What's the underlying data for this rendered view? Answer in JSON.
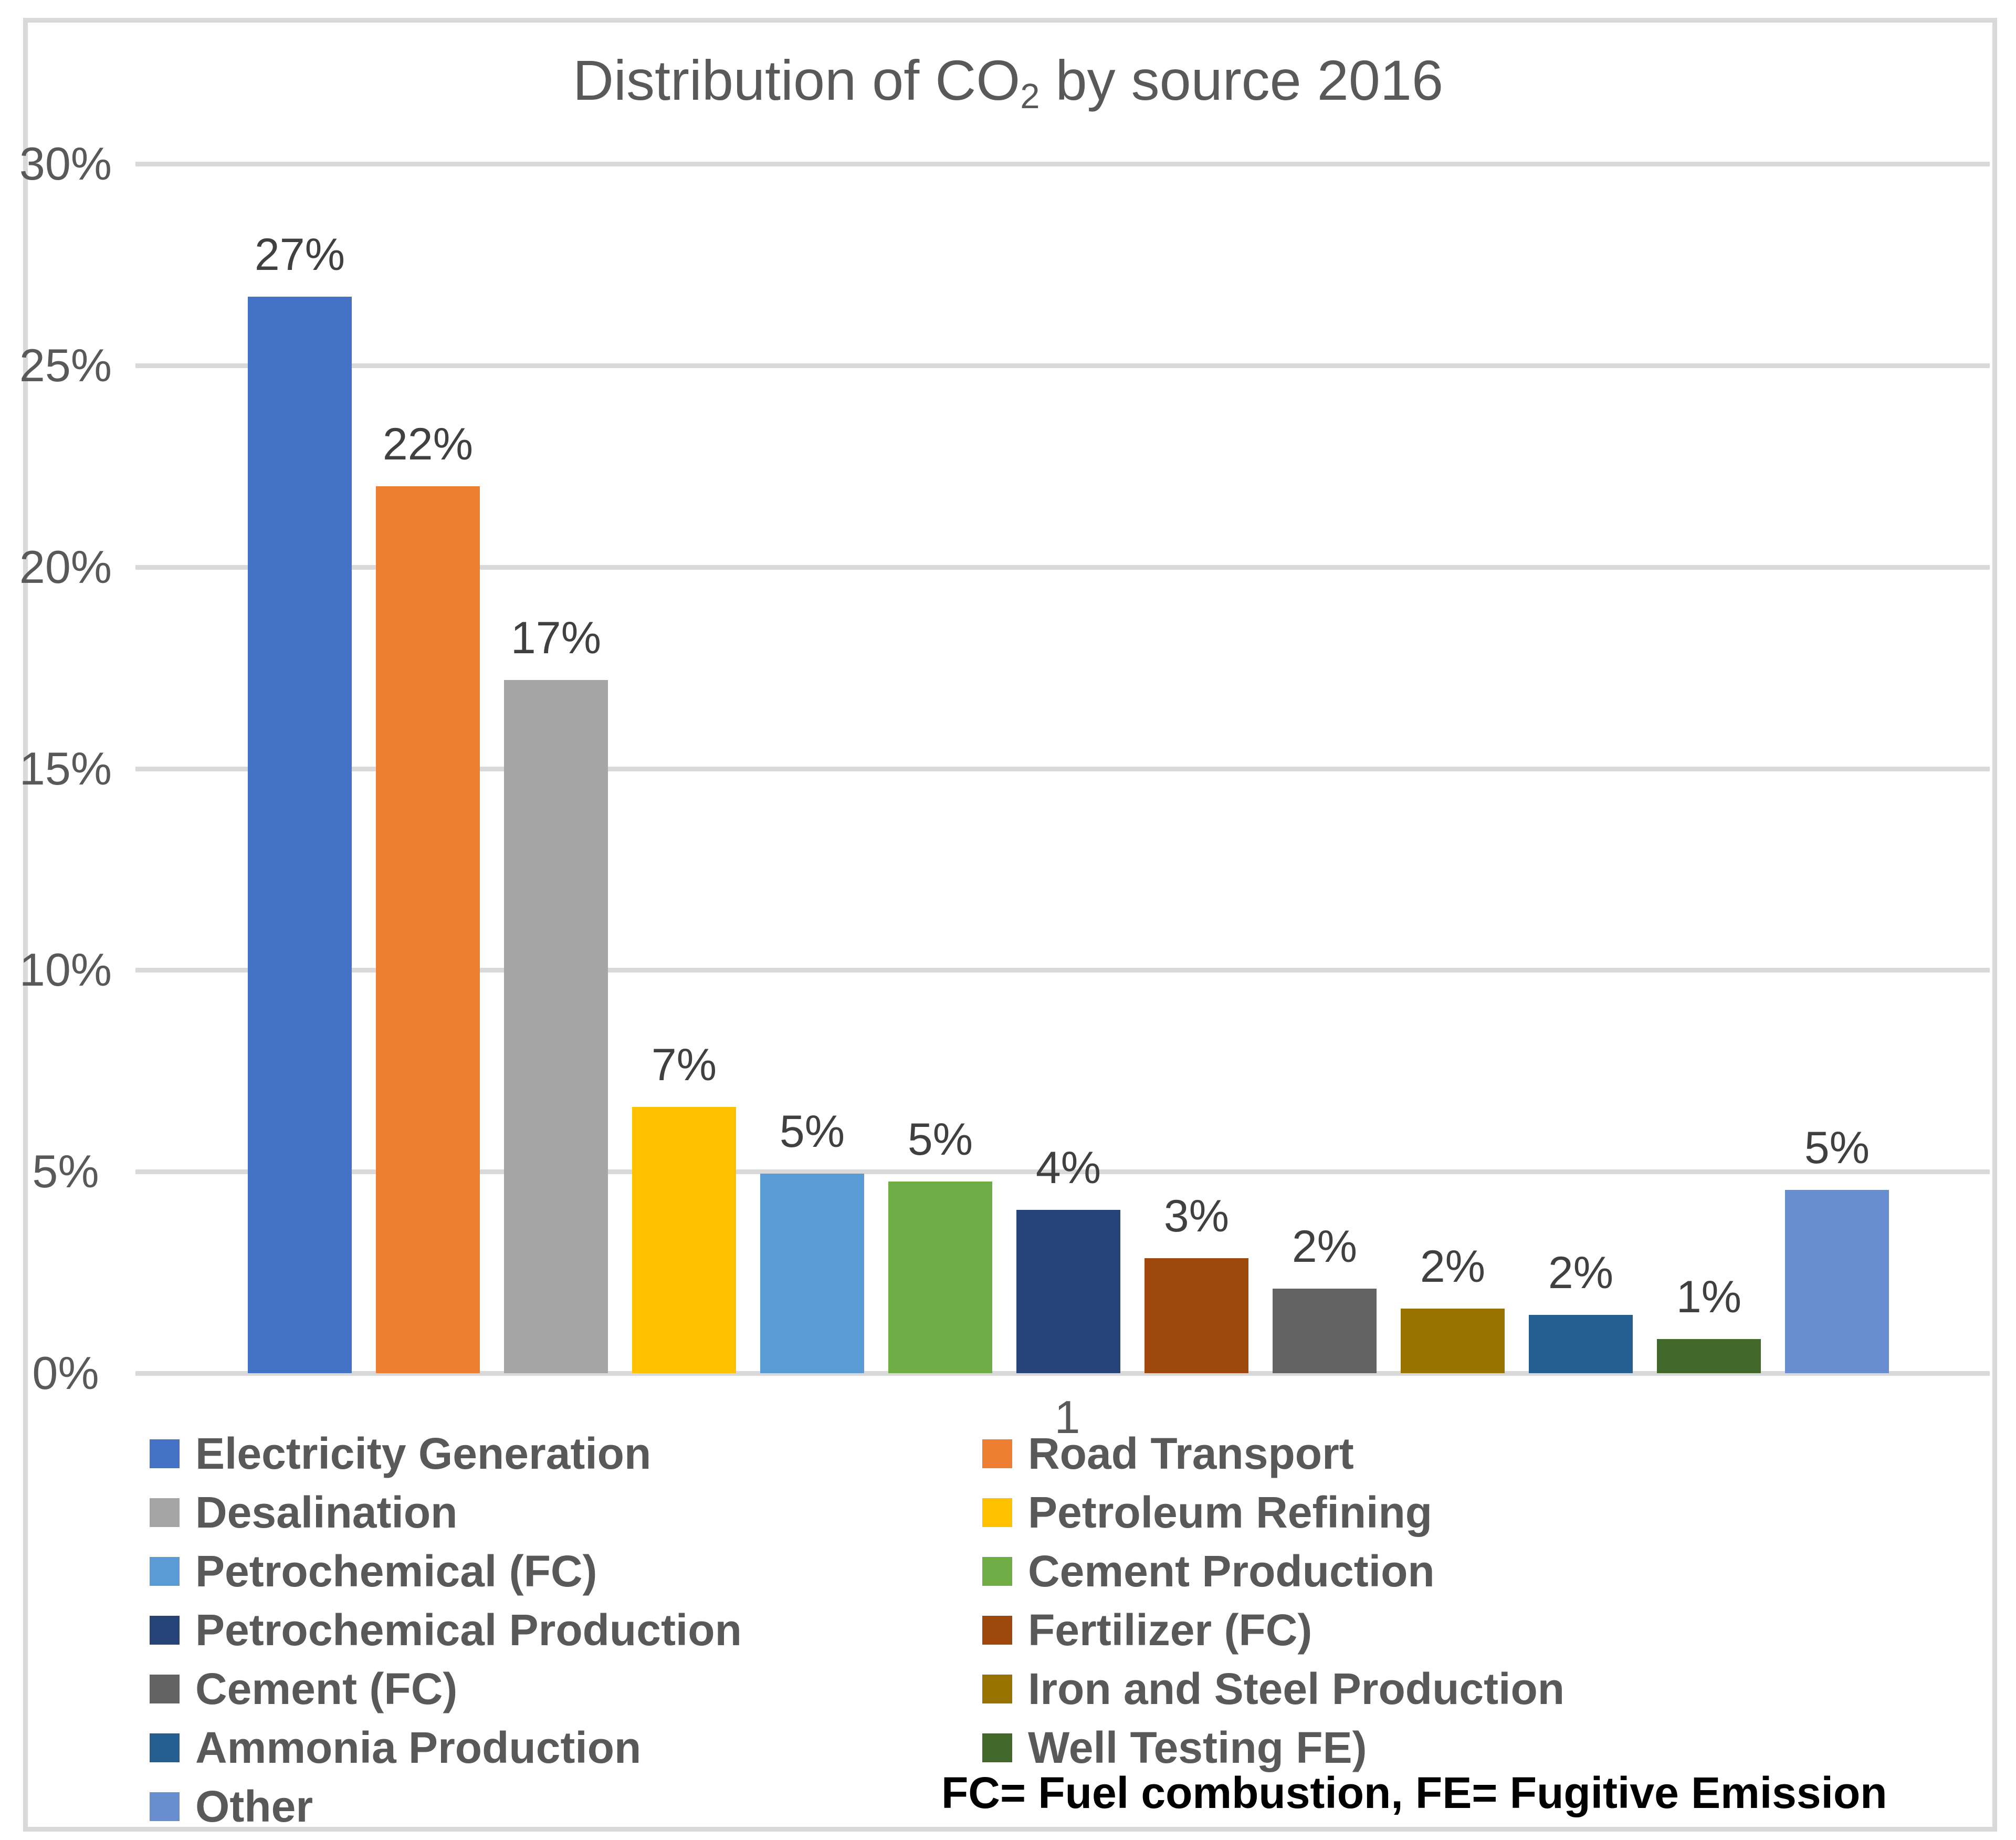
{
  "chart_data": {
    "type": "bar",
    "title": "Distribution of CO2 by source 2016",
    "title_parts": {
      "pre": "Distribution of CO",
      "sub": "2",
      "post": " by source 2016"
    },
    "x_category_label": "1",
    "ylim": [
      0,
      30
    ],
    "y_ticks": [
      "0%",
      "5%",
      "10%",
      "15%",
      "20%",
      "25%",
      "30%"
    ],
    "grid": true,
    "legend_position": "bottom-two-columns",
    "note": "FC= Fuel combustion, FE= Fugitive Emission",
    "series": [
      {
        "name": "Electricity Generation",
        "value_label": "27%",
        "value_pct": 27,
        "bar_height_pct_est": 26.7,
        "color": "#4472C4"
      },
      {
        "name": "Road Transport",
        "value_label": "22%",
        "value_pct": 22,
        "bar_height_pct_est": 22.0,
        "color": "#ED7D31"
      },
      {
        "name": "Desalination",
        "value_label": "17%",
        "value_pct": 17,
        "bar_height_pct_est": 17.2,
        "color": "#A5A5A5"
      },
      {
        "name": "Petroleum Refining",
        "value_label": "7%",
        "value_pct": 7,
        "bar_height_pct_est": 6.6,
        "color": "#FFC000"
      },
      {
        "name": "Petrochemical (FC)",
        "value_label": "5%",
        "value_pct": 5,
        "bar_height_pct_est": 4.95,
        "color": "#5B9BD5"
      },
      {
        "name": "Cement Production",
        "value_label": "5%",
        "value_pct": 5,
        "bar_height_pct_est": 4.75,
        "color": "#70AD47"
      },
      {
        "name": "Petrochemical Production",
        "value_label": "4%",
        "value_pct": 4,
        "bar_height_pct_est": 4.05,
        "color": "#264478"
      },
      {
        "name": "Fertilizer (FC)",
        "value_label": "3%",
        "value_pct": 3,
        "bar_height_pct_est": 2.85,
        "color": "#9E480E"
      },
      {
        "name": "Cement (FC)",
        "value_label": "2%",
        "value_pct": 2,
        "bar_height_pct_est": 2.1,
        "color": "#636363"
      },
      {
        "name": "Iron and Steel Production",
        "value_label": "2%",
        "value_pct": 2,
        "bar_height_pct_est": 1.6,
        "color": "#997300"
      },
      {
        "name": "Ammonia Production",
        "value_label": "2%",
        "value_pct": 2,
        "bar_height_pct_est": 1.45,
        "color": "#255E91"
      },
      {
        "name": "Well Testing FE)",
        "value_label": "1%",
        "value_pct": 1,
        "bar_height_pct_est": 0.85,
        "color": "#43682B"
      },
      {
        "name": "Other",
        "value_label": "5%",
        "value_pct": 5,
        "bar_height_pct_est": 4.55,
        "color": "#698ED0"
      }
    ]
  },
  "styles": {
    "background": "#FFFFFF",
    "grid_color": "#D9D9D9",
    "border_color": "#D9D9D9",
    "title_color": "#595959",
    "axis_text_color": "#595959",
    "data_label_color": "#404040",
    "legend_text_color": "#595959",
    "note_color": "#000000"
  }
}
